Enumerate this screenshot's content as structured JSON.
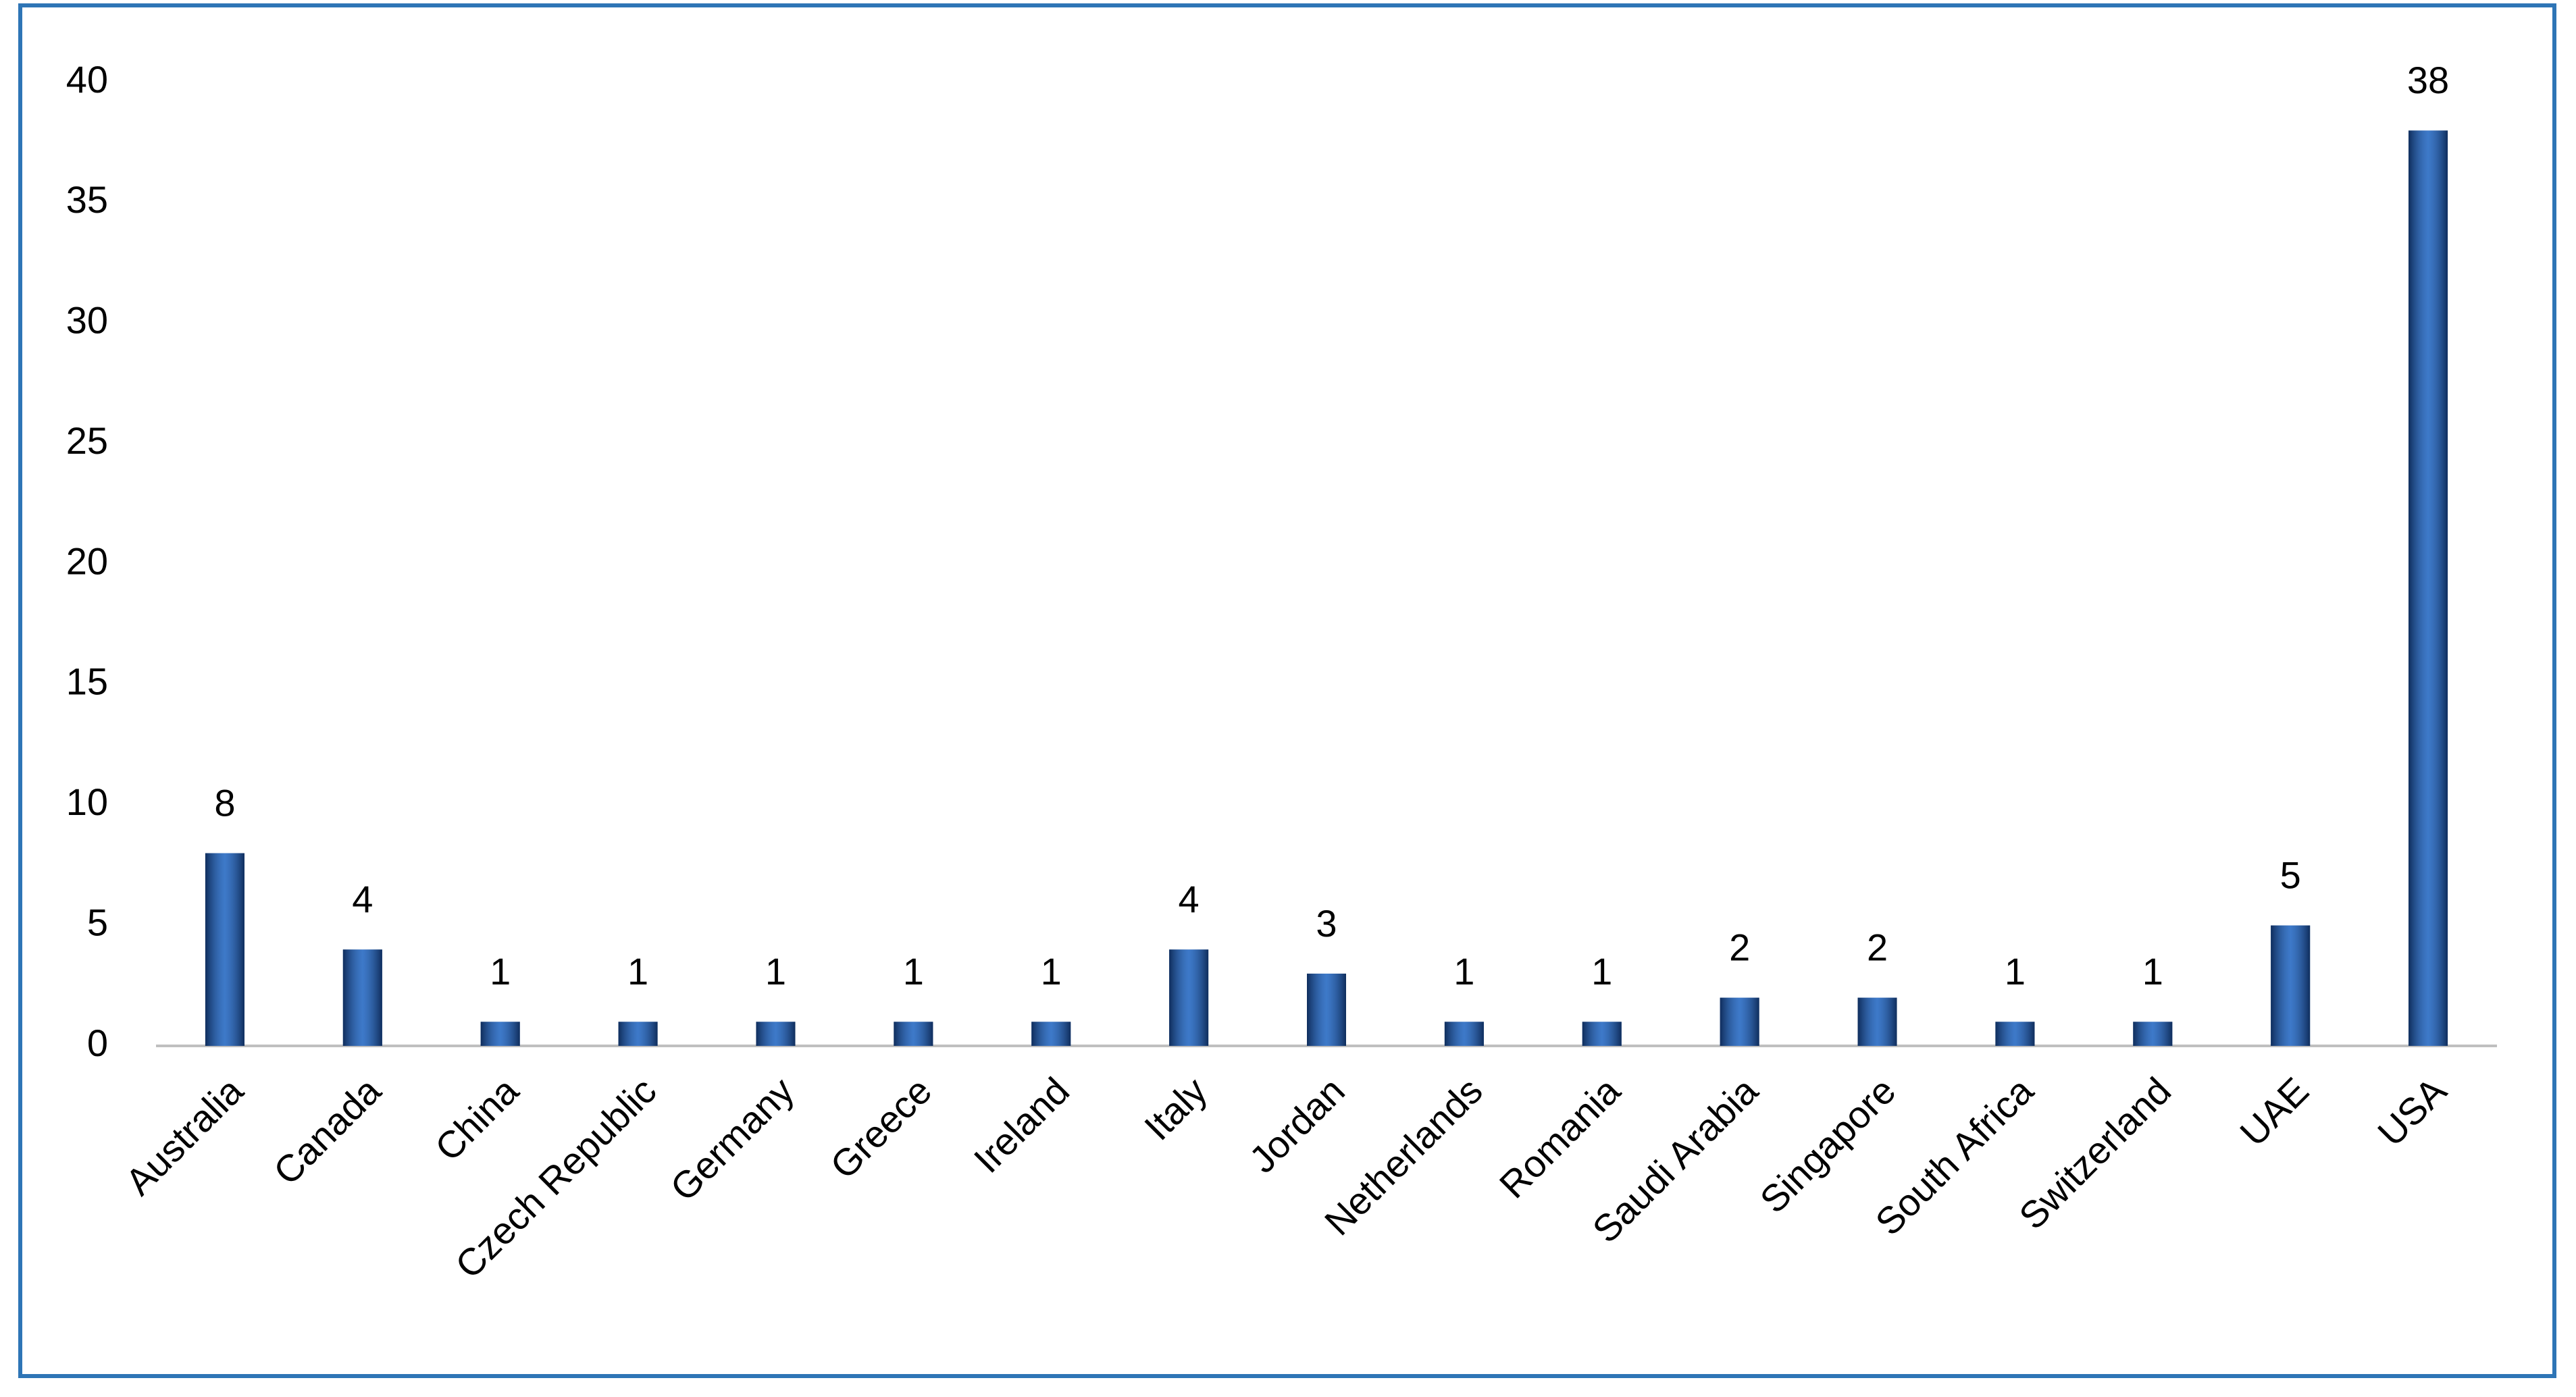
{
  "chart_data": {
    "type": "bar",
    "categories": [
      "Australia",
      "Canada",
      "China",
      "Czech Republic",
      "Germany",
      "Greece",
      "Ireland",
      "Italy",
      "Jordan",
      "Netherlands",
      "Romania",
      "Saudi Arabia",
      "Singapore",
      "South Africa",
      "Switzerland",
      "UAE",
      "USA"
    ],
    "values": [
      8,
      4,
      1,
      1,
      1,
      1,
      1,
      4,
      3,
      1,
      1,
      2,
      2,
      1,
      1,
      5,
      38
    ],
    "color": "#2860ad",
    "ylim": [
      0,
      40
    ],
    "yticks": [
      0,
      5,
      10,
      15,
      20,
      25,
      30,
      35,
      40
    ],
    "grid": false
  }
}
